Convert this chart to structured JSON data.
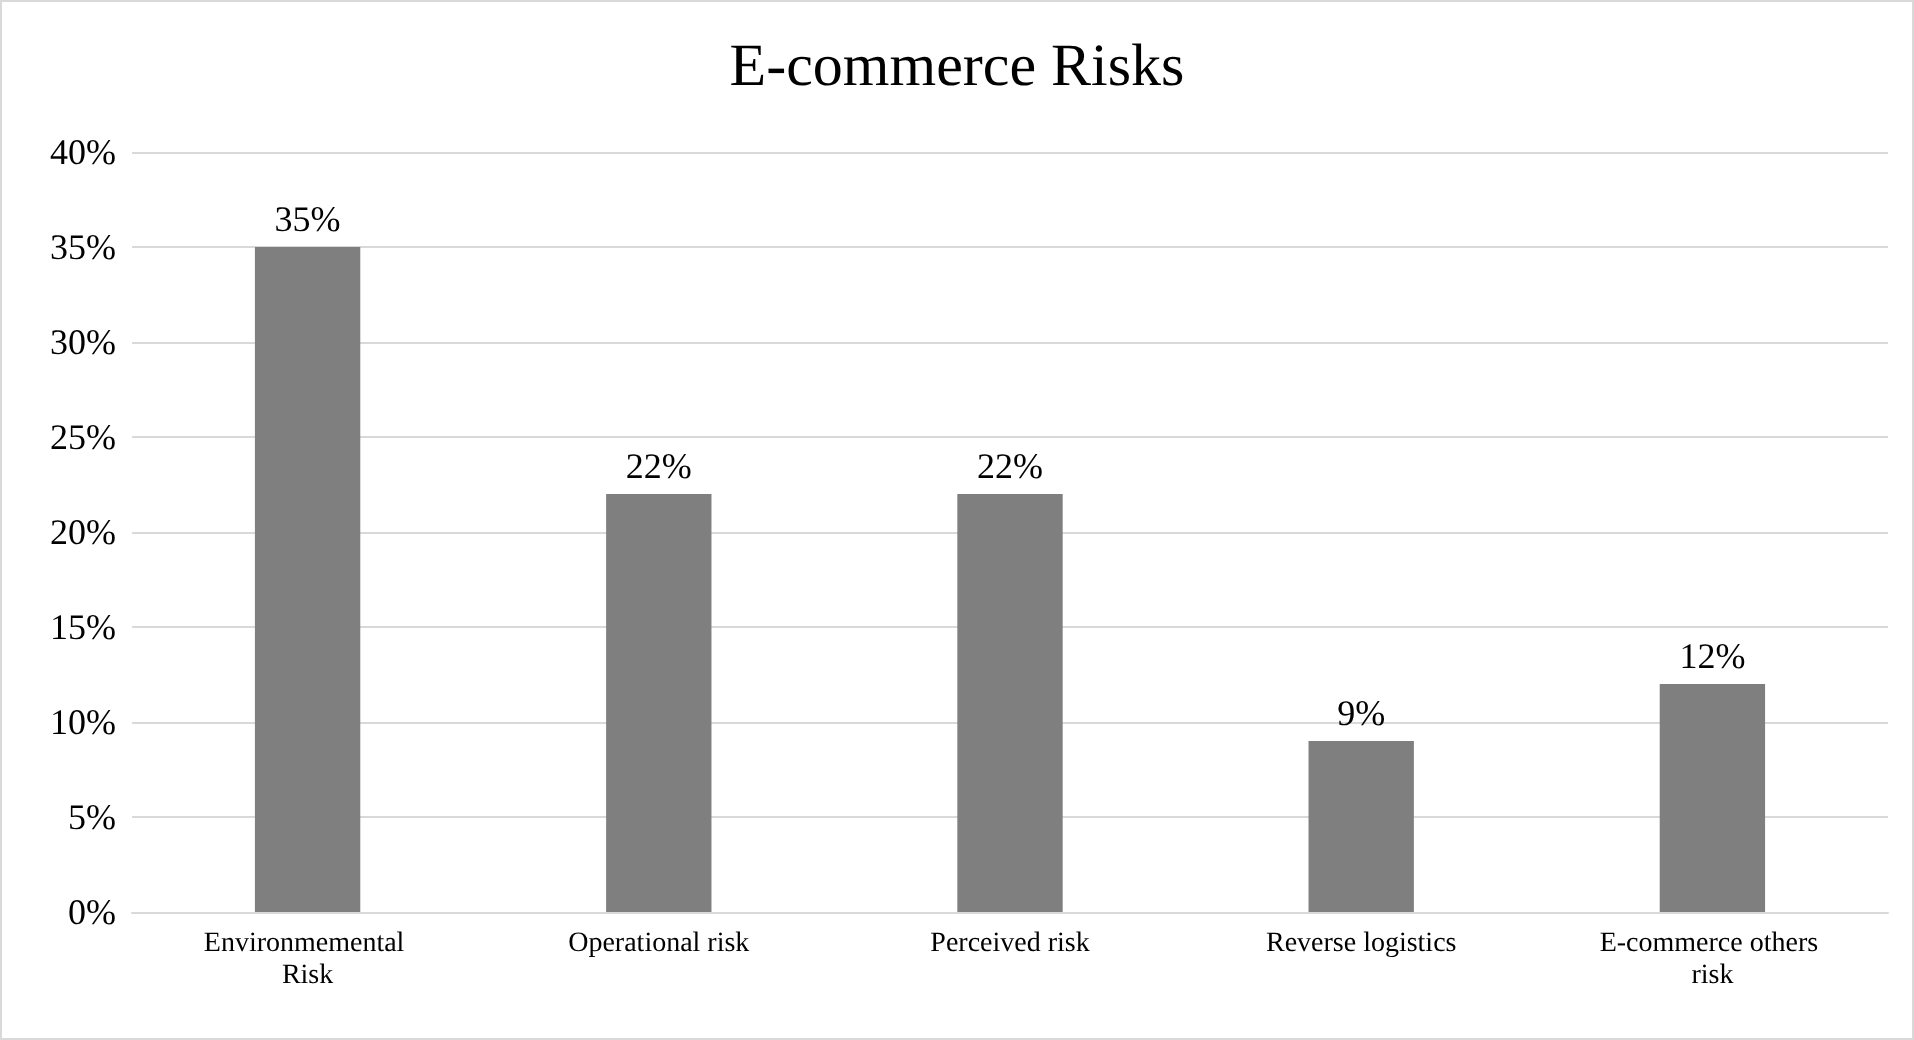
{
  "chart_data": {
    "type": "bar",
    "title": "E-commerce Risks",
    "categories": [
      "Environmemental Risk",
      "Operational risk",
      "Perceived risk",
      "Reverse logistics",
      "E-commerce others risk"
    ],
    "values": [
      35,
      22,
      22,
      9,
      12
    ],
    "color": "#7f7f7f",
    "value_labels": [
      "35%",
      "22%",
      "22%",
      "9%",
      "12%"
    ],
    "ylim": [
      0,
      40
    ],
    "yticks": [
      {
        "value": 0,
        "label": "0%"
      },
      {
        "value": 5,
        "label": "5%"
      },
      {
        "value": 10,
        "label": "10%"
      },
      {
        "value": 15,
        "label": "15%"
      },
      {
        "value": 20,
        "label": "20%"
      },
      {
        "value": 25,
        "label": "25%"
      },
      {
        "value": 30,
        "label": "30%"
      },
      {
        "value": 35,
        "label": "35%"
      },
      {
        "value": 40,
        "label": "40%"
      }
    ],
    "grid": true
  }
}
